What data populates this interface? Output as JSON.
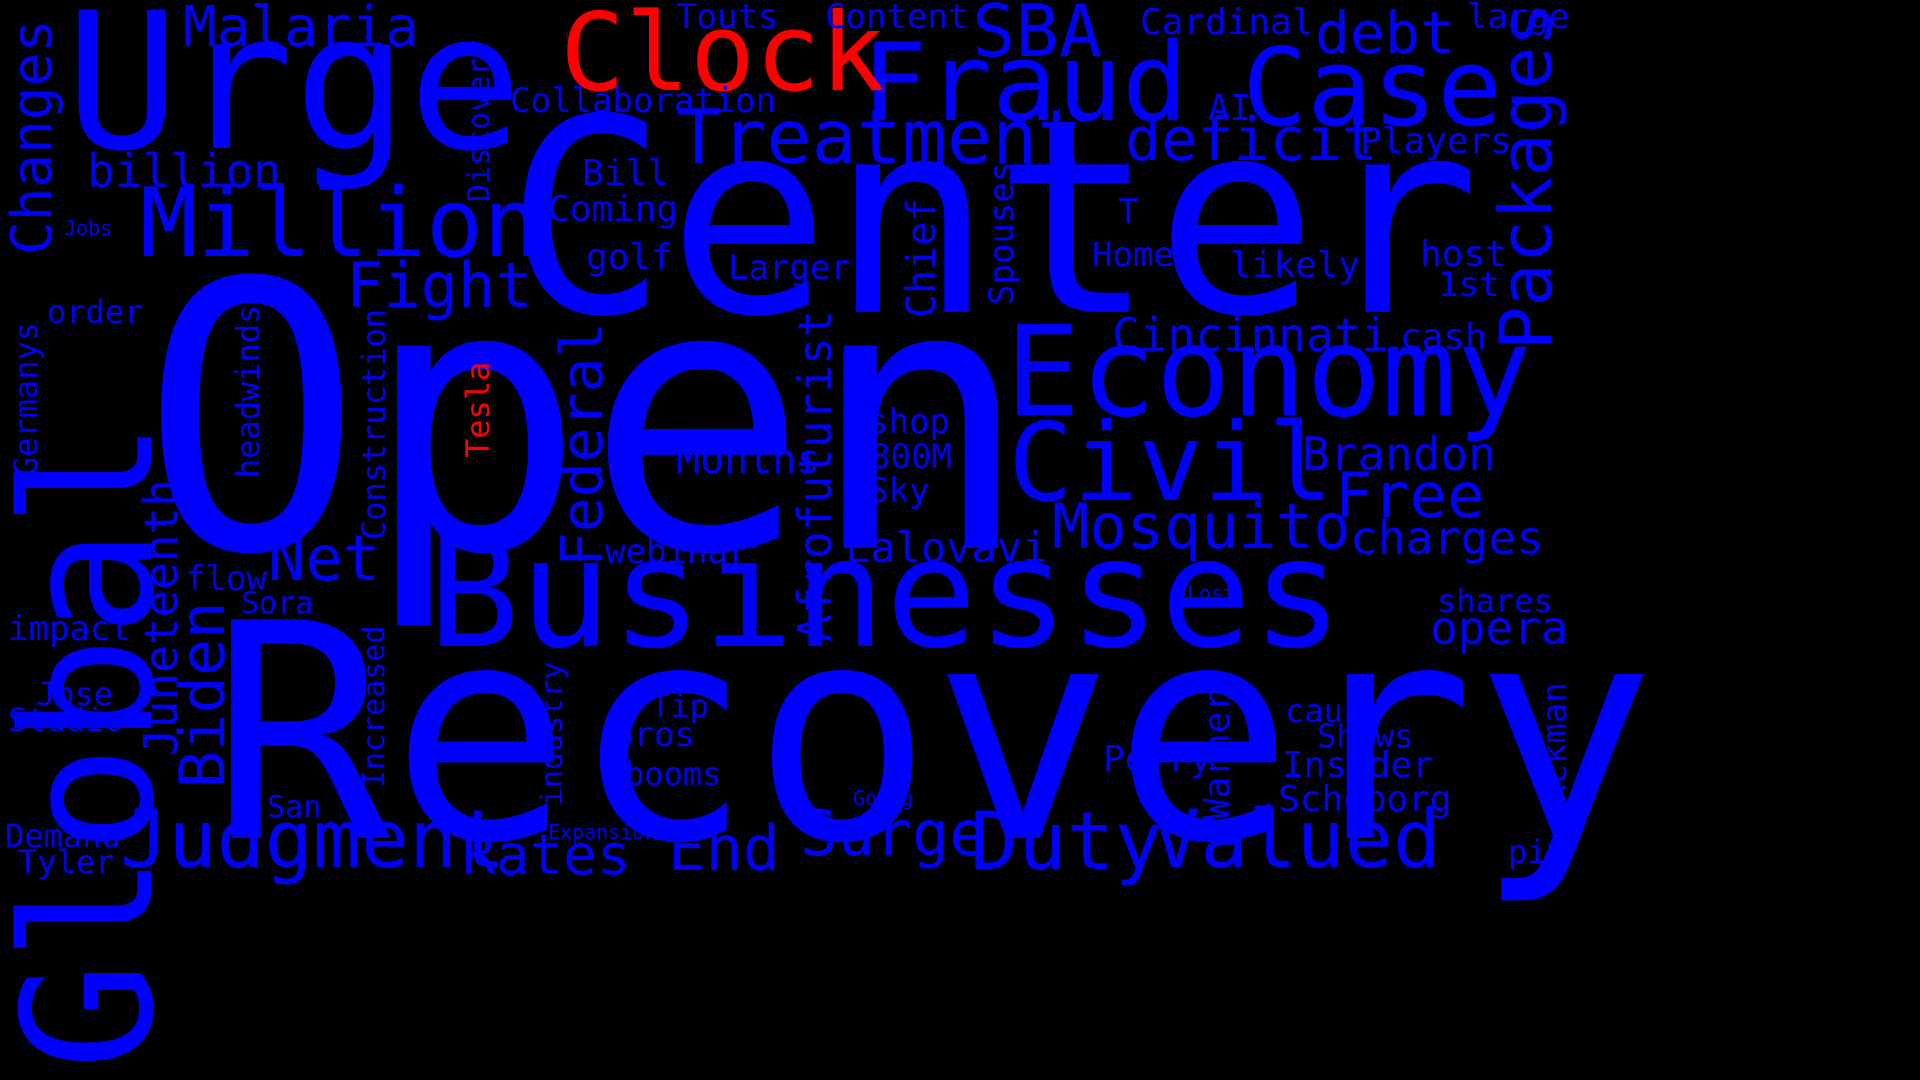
{
  "background_color": "#000000",
  "colors": {
    "primary": "#0000ff",
    "highlight": "#ff0000"
  },
  "words": [
    {
      "text": "Open",
      "color": "primary",
      "orientation": "horizontal"
    },
    {
      "text": "Center",
      "color": "primary",
      "orientation": "horizontal"
    },
    {
      "text": "Recovery",
      "color": "primary",
      "orientation": "horizontal"
    },
    {
      "text": "Businesses",
      "color": "primary",
      "orientation": "horizontal"
    },
    {
      "text": "Urge",
      "color": "primary",
      "orientation": "horizontal"
    },
    {
      "text": "Global",
      "color": "primary",
      "orientation": "vertical"
    },
    {
      "text": "Economy",
      "color": "primary",
      "orientation": "horizontal"
    },
    {
      "text": "Fraud",
      "color": "primary",
      "orientation": "horizontal"
    },
    {
      "text": "Case",
      "color": "primary",
      "orientation": "horizontal"
    },
    {
      "text": "Civil",
      "color": "primary",
      "orientation": "horizontal"
    },
    {
      "text": "Clock",
      "color": "highlight",
      "orientation": "horizontal"
    },
    {
      "text": "Million",
      "color": "primary",
      "orientation": "horizontal"
    },
    {
      "text": "Treatment",
      "color": "primary",
      "orientation": "horizontal"
    },
    {
      "text": "Judgment",
      "color": "primary",
      "orientation": "horizontal"
    },
    {
      "text": "Valued",
      "color": "primary",
      "orientation": "horizontal"
    },
    {
      "text": "Duty",
      "color": "primary",
      "orientation": "horizontal"
    },
    {
      "text": "Packages",
      "color": "primary",
      "orientation": "vertical"
    },
    {
      "text": "Malaria",
      "color": "primary",
      "orientation": "horizontal"
    },
    {
      "text": "SBA",
      "color": "primary",
      "orientation": "horizontal"
    },
    {
      "text": "debt",
      "color": "primary",
      "orientation": "horizontal"
    },
    {
      "text": "deficit",
      "color": "primary",
      "orientation": "horizontal"
    },
    {
      "text": "Mosquito",
      "color": "primary",
      "orientation": "horizontal"
    },
    {
      "text": "Free",
      "color": "primary",
      "orientation": "horizontal"
    },
    {
      "text": "Fight",
      "color": "primary",
      "orientation": "horizontal"
    },
    {
      "text": "Federal",
      "color": "primary",
      "orientation": "vertical"
    },
    {
      "text": "Changes",
      "color": "primary",
      "orientation": "vertical"
    },
    {
      "text": "Net",
      "color": "primary",
      "orientation": "horizontal"
    },
    {
      "text": "Biden",
      "color": "primary",
      "orientation": "vertical"
    },
    {
      "text": "Surge",
      "color": "primary",
      "orientation": "horizontal"
    },
    {
      "text": "End",
      "color": "primary",
      "orientation": "horizontal"
    },
    {
      "text": "Rates",
      "color": "primary",
      "orientation": "horizontal"
    },
    {
      "text": "billion",
      "color": "primary",
      "orientation": "horizontal"
    },
    {
      "text": "Juneteenth",
      "color": "primary",
      "orientation": "vertical"
    },
    {
      "text": "Afrofuturist",
      "color": "primary",
      "orientation": "vertical"
    },
    {
      "text": "Cincinnati",
      "color": "primary",
      "orientation": "horizontal"
    },
    {
      "text": "Brandon",
      "color": "primary",
      "orientation": "horizontal"
    },
    {
      "text": "charges",
      "color": "primary",
      "orientation": "horizontal"
    },
    {
      "text": "Lalovavi",
      "color": "primary",
      "orientation": "horizontal"
    },
    {
      "text": "Months",
      "color": "primary",
      "orientation": "horizontal"
    },
    {
      "text": "opera",
      "color": "primary",
      "orientation": "horizontal"
    },
    {
      "text": "Players",
      "color": "primary",
      "orientation": "horizontal"
    },
    {
      "text": "Collaboration",
      "color": "primary",
      "orientation": "horizontal"
    },
    {
      "text": "Content",
      "color": "primary",
      "orientation": "horizontal"
    },
    {
      "text": "Touts",
      "color": "primary",
      "orientation": "horizontal"
    },
    {
      "text": "Cardinal",
      "color": "primary",
      "orientation": "horizontal"
    },
    {
      "text": "large",
      "color": "primary",
      "orientation": "horizontal"
    },
    {
      "text": "AI",
      "color": "primary",
      "orientation": "horizontal"
    },
    {
      "text": "Discovery",
      "color": "primary",
      "orientation": "vertical"
    },
    {
      "text": "Bill",
      "color": "primary",
      "orientation": "horizontal"
    },
    {
      "text": "Coming",
      "color": "primary",
      "orientation": "horizontal"
    },
    {
      "text": "golf",
      "color": "primary",
      "orientation": "horizontal"
    },
    {
      "text": "Larger",
      "color": "primary",
      "orientation": "horizontal"
    },
    {
      "text": "Chief",
      "color": "primary",
      "orientation": "vertical"
    },
    {
      "text": "Spouses",
      "color": "primary",
      "orientation": "vertical"
    },
    {
      "text": "Home",
      "color": "primary",
      "orientation": "horizontal"
    },
    {
      "text": "T",
      "color": "primary",
      "orientation": "horizontal"
    },
    {
      "text": "likely",
      "color": "primary",
      "orientation": "horizontal"
    },
    {
      "text": "host",
      "color": "primary",
      "orientation": "horizontal"
    },
    {
      "text": "1st",
      "color": "primary",
      "orientation": "horizontal"
    },
    {
      "text": "cash",
      "color": "primary",
      "orientation": "horizontal"
    },
    {
      "text": "Jobs",
      "color": "primary",
      "orientation": "horizontal"
    },
    {
      "text": "order",
      "color": "primary",
      "orientation": "horizontal"
    },
    {
      "text": "Germanys",
      "color": "primary",
      "orientation": "vertical"
    },
    {
      "text": "headwinds",
      "color": "primary",
      "orientation": "vertical"
    },
    {
      "text": "Construction",
      "color": "primary",
      "orientation": "vertical"
    },
    {
      "text": "Tesla",
      "color": "highlight",
      "orientation": "vertical"
    },
    {
      "text": "shop",
      "color": "primary",
      "orientation": "horizontal"
    },
    {
      "text": "800M",
      "color": "primary",
      "orientation": "horizontal"
    },
    {
      "text": "Sky",
      "color": "primary",
      "orientation": "horizontal"
    },
    {
      "text": "webinar",
      "color": "primary",
      "orientation": "horizontal"
    },
    {
      "text": "flow",
      "color": "primary",
      "orientation": "horizontal"
    },
    {
      "text": "Sora",
      "color": "primary",
      "orientation": "horizontal"
    },
    {
      "text": "impact",
      "color": "primary",
      "orientation": "horizontal"
    },
    {
      "text": "Jose",
      "color": "primary",
      "orientation": "horizontal"
    },
    {
      "text": "Studio",
      "color": "primary",
      "orientation": "horizontal"
    },
    {
      "text": "Demand",
      "color": "primary",
      "orientation": "horizontal"
    },
    {
      "text": "Tyler",
      "color": "primary",
      "orientation": "horizontal"
    },
    {
      "text": "San",
      "color": "primary",
      "orientation": "horizontal"
    },
    {
      "text": "Increased",
      "color": "primary",
      "orientation": "vertical"
    },
    {
      "text": "industry",
      "color": "primary",
      "orientation": "vertical"
    },
    {
      "text": "Tip",
      "color": "primary",
      "orientation": "horizontal"
    },
    {
      "text": "Bros",
      "color": "primary",
      "orientation": "horizontal"
    },
    {
      "text": "booms",
      "color": "primary",
      "orientation": "horizontal"
    },
    {
      "text": "Expansion",
      "color": "primary",
      "orientation": "horizontal"
    },
    {
      "text": "Going",
      "color": "primary",
      "orientation": "horizontal"
    },
    {
      "text": "Perry",
      "color": "primary",
      "orientation": "horizontal"
    },
    {
      "text": "Warner",
      "color": "primary",
      "orientation": "vertical"
    },
    {
      "text": "Lost",
      "color": "primary",
      "orientation": "horizontal"
    },
    {
      "text": "shares",
      "color": "primary",
      "orientation": "horizontal"
    },
    {
      "text": "cause",
      "color": "primary",
      "orientation": "horizontal"
    },
    {
      "text": "Shows",
      "color": "primary",
      "orientation": "horizontal"
    },
    {
      "text": "Insider",
      "color": "primary",
      "orientation": "horizontal"
    },
    {
      "text": "Schoborg",
      "color": "primary",
      "orientation": "horizontal"
    },
    {
      "text": "Ackman",
      "color": "primary",
      "orientation": "vertical"
    },
    {
      "text": "pie",
      "color": "primary",
      "orientation": "horizontal"
    }
  ]
}
